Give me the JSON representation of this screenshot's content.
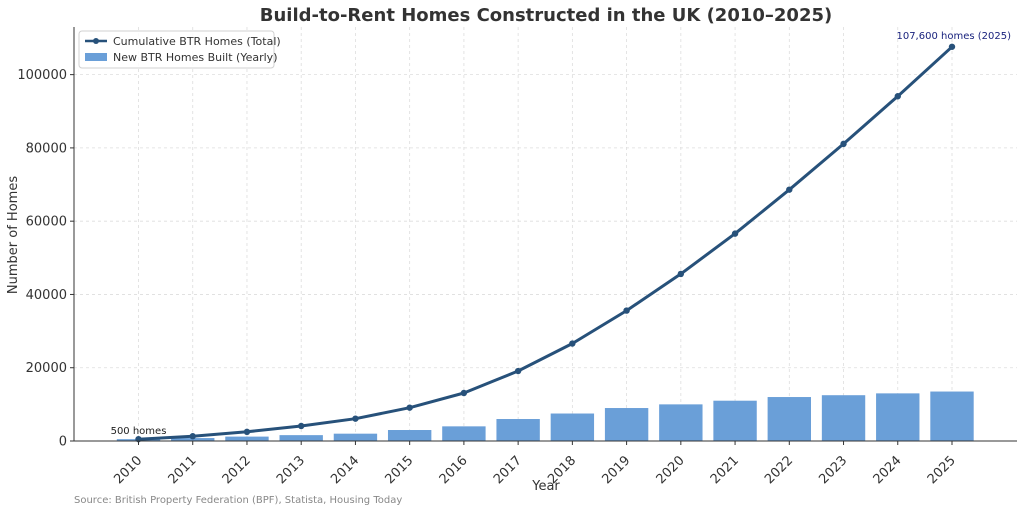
{
  "chart_data": {
    "type": "bar+line",
    "title": "Build-to-Rent Homes Constructed in the UK (2010–2025)",
    "xlabel": "Year",
    "ylabel": "Number of Homes",
    "categories": [
      "2010",
      "2011",
      "2012",
      "2013",
      "2014",
      "2015",
      "2016",
      "2017",
      "2018",
      "2019",
      "2020",
      "2021",
      "2022",
      "2023",
      "2024",
      "2025"
    ],
    "ylim": [
      0,
      113000
    ],
    "yticks": [
      0,
      20000,
      40000,
      60000,
      80000,
      100000
    ],
    "ytick_labels": [
      "0",
      "20000",
      "40000",
      "60000",
      "80000",
      "100000"
    ],
    "grid": true,
    "legend_position": "top-left",
    "series": [
      {
        "name": "Cumulative BTR Homes (Total)",
        "type": "line",
        "color": "#27517a",
        "values": [
          500,
          1300,
          2500,
          4100,
          6100,
          9100,
          13100,
          19100,
          26600,
          35600,
          45600,
          56600,
          68600,
          81100,
          94100,
          107600
        ]
      },
      {
        "name": "New BTR Homes Built (Yearly)",
        "type": "bar",
        "color": "#6a9fd8",
        "values": [
          500,
          800,
          1200,
          1600,
          2000,
          3000,
          4000,
          6000,
          7500,
          9000,
          10000,
          11000,
          12000,
          12500,
          13000,
          13500
        ]
      }
    ],
    "annotations": [
      {
        "text": "500 homes",
        "category": "2010",
        "value": 500,
        "color": "#222222"
      },
      {
        "text": "107,600 homes (2025)",
        "category": "2025",
        "value": 107600,
        "color": "#1a237e"
      }
    ],
    "source": "Source: British Property Federation (BPF), Statista, Housing Today"
  }
}
